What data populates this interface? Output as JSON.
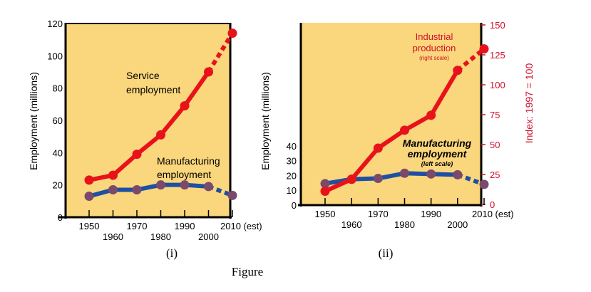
{
  "figure_caption": "Figure",
  "colors": {
    "plot_bg": "#FAD67C",
    "service": "#E8121B",
    "industrial": "#E8121B",
    "manufacturing": "#1E4FA3",
    "manufacturing_marker": "#7A4A6C",
    "right_axis": "#D0102A"
  },
  "chart_data": [
    {
      "type": "line",
      "panel_label": "(i)",
      "ylabel": "Employment (millions)",
      "ylim": [
        0,
        120
      ],
      "yticks": [
        "0",
        "20",
        "40",
        "60",
        "80",
        "100",
        "120"
      ],
      "x": [
        1950,
        1960,
        1970,
        1980,
        1990,
        2000,
        2010
      ],
      "xtick_labels": [
        "1950",
        "1960",
        "1970",
        "1980",
        "1990",
        "2000",
        "2010 (est)"
      ],
      "grid": false,
      "series": [
        {
          "name": "Service employment",
          "label_lines": [
            "Service",
            "employment"
          ],
          "values": [
            23,
            26,
            39,
            51,
            69,
            90,
            114
          ],
          "estimated_last": true
        },
        {
          "name": "Manufacturing employment",
          "label_lines": [
            "Manufacturing",
            "employment"
          ],
          "values": [
            13,
            17,
            17,
            20,
            20,
            19,
            13.5
          ],
          "estimated_last": true
        }
      ]
    },
    {
      "type": "line",
      "panel_label": "(ii)",
      "ylabel": "Employment (millions)",
      "ylabel_right": "Index: 1997 = 100",
      "ylim": [
        0,
        40
      ],
      "yticks": [
        "0",
        "10",
        "20",
        "30",
        "40"
      ],
      "ylim_right": [
        0,
        150
      ],
      "yticks_right": [
        "0",
        "25",
        "50",
        "75",
        "100",
        "125",
        "150"
      ],
      "x": [
        1950,
        1960,
        1970,
        1980,
        1990,
        2000,
        2010
      ],
      "xtick_labels": [
        "1950",
        "1960",
        "1970",
        "1980",
        "1990",
        "2000",
        "2010 (est)"
      ],
      "grid": false,
      "series": [
        {
          "name": "Industrial production",
          "label_lines": [
            "Industrial",
            "production",
            "(right scale)"
          ],
          "axis": "right",
          "values": [
            11,
            21,
            47,
            62,
            74.5,
            112,
            130
          ],
          "estimated_last": true
        },
        {
          "name": "Manufacturing employment",
          "label_lines": [
            "Manufacturing",
            "employment",
            "(left scale)"
          ],
          "axis": "left",
          "values": [
            14.5,
            17.5,
            18,
            21.5,
            21,
            20.5,
            14
          ],
          "estimated_last": true
        }
      ]
    }
  ]
}
